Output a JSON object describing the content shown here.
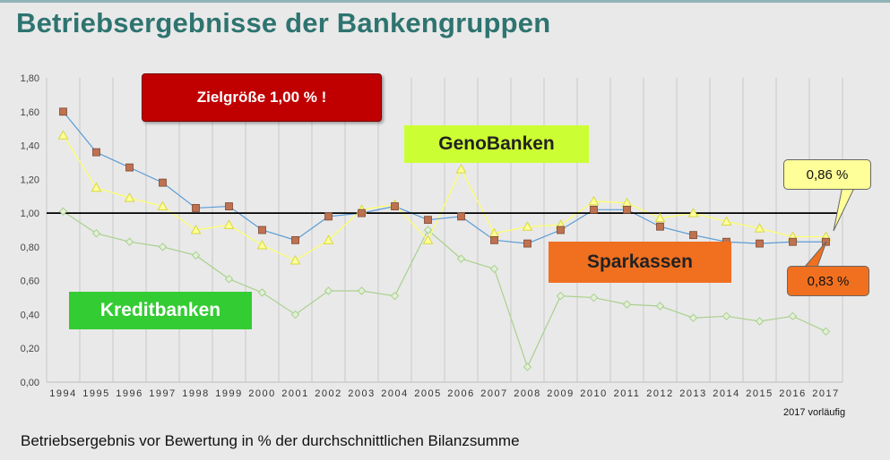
{
  "title": "Betriebsergebnisse der Bankengruppen",
  "caption": "Betriebsergebnis vor Bewertung in % der durchschnittlichen Bilanzsumme",
  "footnote": "2017 vorläufig",
  "callouts": {
    "target": "Zielgröße 1,00 % !",
    "geno": "GenoBanken",
    "sparkassen": "Sparkassen",
    "kredit": "Kreditbanken",
    "geno_value": "0,86 %",
    "sparkassen_value": "0,83 %"
  },
  "colors": {
    "title": "#2e7470",
    "sparkassen": "#5b9bd5",
    "sparkassen_marker": "#c0714f",
    "geno": "#ffff66",
    "kredit": "#a9d18e",
    "target_line": "#000000"
  },
  "chart_data": {
    "type": "line",
    "x": [
      "1994",
      "1995",
      "1996",
      "1997",
      "1998",
      "1999",
      "2000",
      "2001",
      "2002",
      "2003",
      "2004",
      "2005",
      "2006",
      "2007",
      "2008",
      "2009",
      "2010",
      "2011",
      "2012",
      "2013",
      "2014",
      "2015",
      "2016",
      "2017"
    ],
    "ylim": [
      0,
      1.8
    ],
    "yticks": [
      "0,00",
      "0,20",
      "0,40",
      "0,60",
      "0,80",
      "1,00",
      "1,20",
      "1,40",
      "1,60",
      "1,80"
    ],
    "grid": "vertical",
    "reference_line": 1.0,
    "series": [
      {
        "name": "Sparkassen",
        "marker": "square",
        "color": "#5b9bd5",
        "values": [
          1.6,
          1.36,
          1.27,
          1.18,
          1.03,
          1.04,
          0.9,
          0.84,
          0.98,
          1.0,
          1.04,
          0.96,
          0.98,
          0.84,
          0.82,
          0.9,
          1.02,
          1.02,
          0.92,
          0.87,
          0.83,
          0.82,
          0.83,
          0.83
        ]
      },
      {
        "name": "GenoBanken",
        "marker": "triangle",
        "color": "#ffff66",
        "values": [
          1.46,
          1.15,
          1.09,
          1.04,
          0.9,
          0.93,
          0.81,
          0.72,
          0.84,
          1.02,
          1.05,
          0.84,
          1.26,
          0.88,
          0.92,
          0.93,
          1.07,
          1.06,
          0.97,
          1.0,
          0.95,
          0.91,
          0.86,
          0.86
        ]
      },
      {
        "name": "Kreditbanken",
        "marker": "diamond",
        "color": "#a9d18e",
        "values": [
          1.01,
          0.88,
          0.83,
          0.8,
          0.75,
          0.61,
          0.53,
          0.4,
          0.54,
          0.54,
          0.51,
          0.9,
          0.73,
          0.67,
          0.09,
          0.51,
          0.5,
          0.46,
          0.45,
          0.38,
          0.39,
          0.36,
          0.39,
          0.3
        ]
      }
    ]
  }
}
